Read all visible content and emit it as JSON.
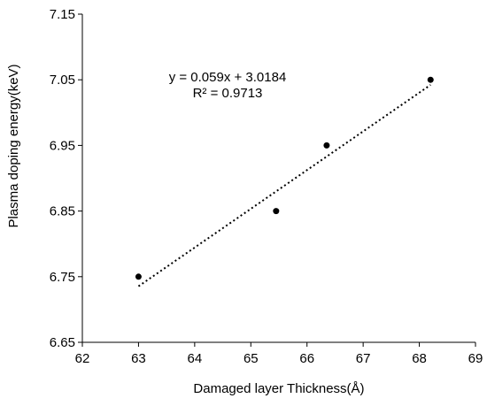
{
  "chart_data": {
    "type": "scatter",
    "title": "",
    "xlabel": "Damaged layer Thickness(Å)",
    "ylabel": "Plasma doping energy(keV)",
    "xlim": [
      62,
      69
    ],
    "ylim": [
      6.65,
      7.15
    ],
    "x_ticks": [
      "62",
      "63",
      "64",
      "65",
      "66",
      "67",
      "68",
      "69"
    ],
    "y_ticks": [
      "6.65",
      "6.75",
      "6.85",
      "6.95",
      "7.05",
      "7.15"
    ],
    "grid": false,
    "legend": "none",
    "series": [
      {
        "x": [
          63.0,
          65.45,
          66.35,
          68.2
        ],
        "y": [
          6.75,
          6.85,
          6.95,
          7.05
        ]
      }
    ],
    "trendline": {
      "type": "linear",
      "style": "dotted",
      "slope": 0.059,
      "intercept": 3.0184,
      "x_range": [
        63.0,
        68.2
      ],
      "equation_text": "y = 0.059x + 3.0184",
      "r2_text": "R² = 0.9713"
    },
    "colors": {
      "points": "#000000",
      "axes": "#000000",
      "trendline": "#000000"
    }
  }
}
